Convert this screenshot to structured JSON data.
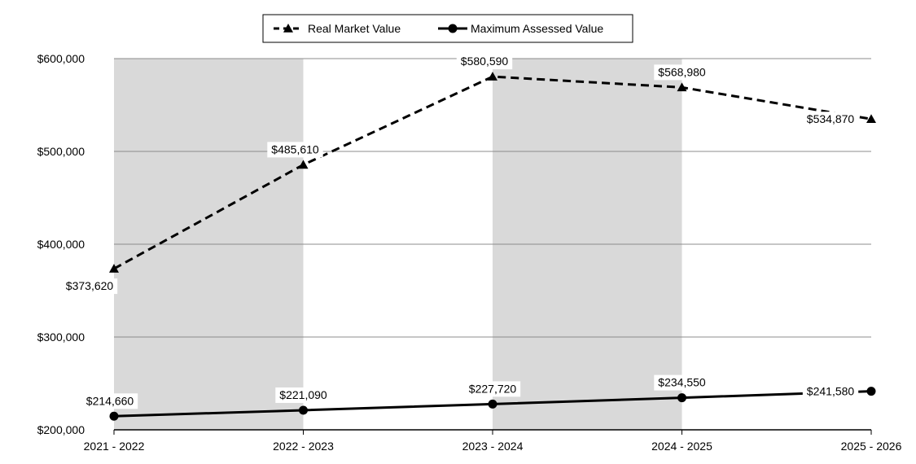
{
  "chart_data": {
    "type": "line",
    "title": "",
    "xlabel": "",
    "ylabel": "",
    "categories": [
      "2021 - 2022",
      "2022 - 2023",
      "2023 - 2024",
      "2024 - 2025",
      "2025 - 2026"
    ],
    "ylim": [
      200000,
      600000
    ],
    "yticks": [
      200000,
      300000,
      400000,
      500000,
      600000
    ],
    "ytick_labels": [
      "$200,000",
      "$300,000",
      "$400,000",
      "$500,000",
      "$600,000"
    ],
    "grid": true,
    "shaded_bands": [
      "2021 - 2022",
      "2023 - 2024"
    ],
    "band_color": "#d9d9d9",
    "legend": "top-center",
    "series": [
      {
        "name": "Real Market Value",
        "style": "dashed",
        "marker": "triangle",
        "color": "#000000",
        "values": [
          373620,
          485610,
          580590,
          568980,
          534870
        ],
        "labels": [
          "$373,620",
          "$485,610",
          "$580,590",
          "$568,980",
          "$534,870"
        ]
      },
      {
        "name": "Maximum Assessed Value",
        "style": "solid",
        "marker": "circle",
        "color": "#000000",
        "values": [
          214660,
          221090,
          227720,
          234550,
          241580
        ],
        "labels": [
          "$214,660",
          "$221,090",
          "$227,720",
          "$234,550",
          "$241,580"
        ]
      }
    ]
  }
}
